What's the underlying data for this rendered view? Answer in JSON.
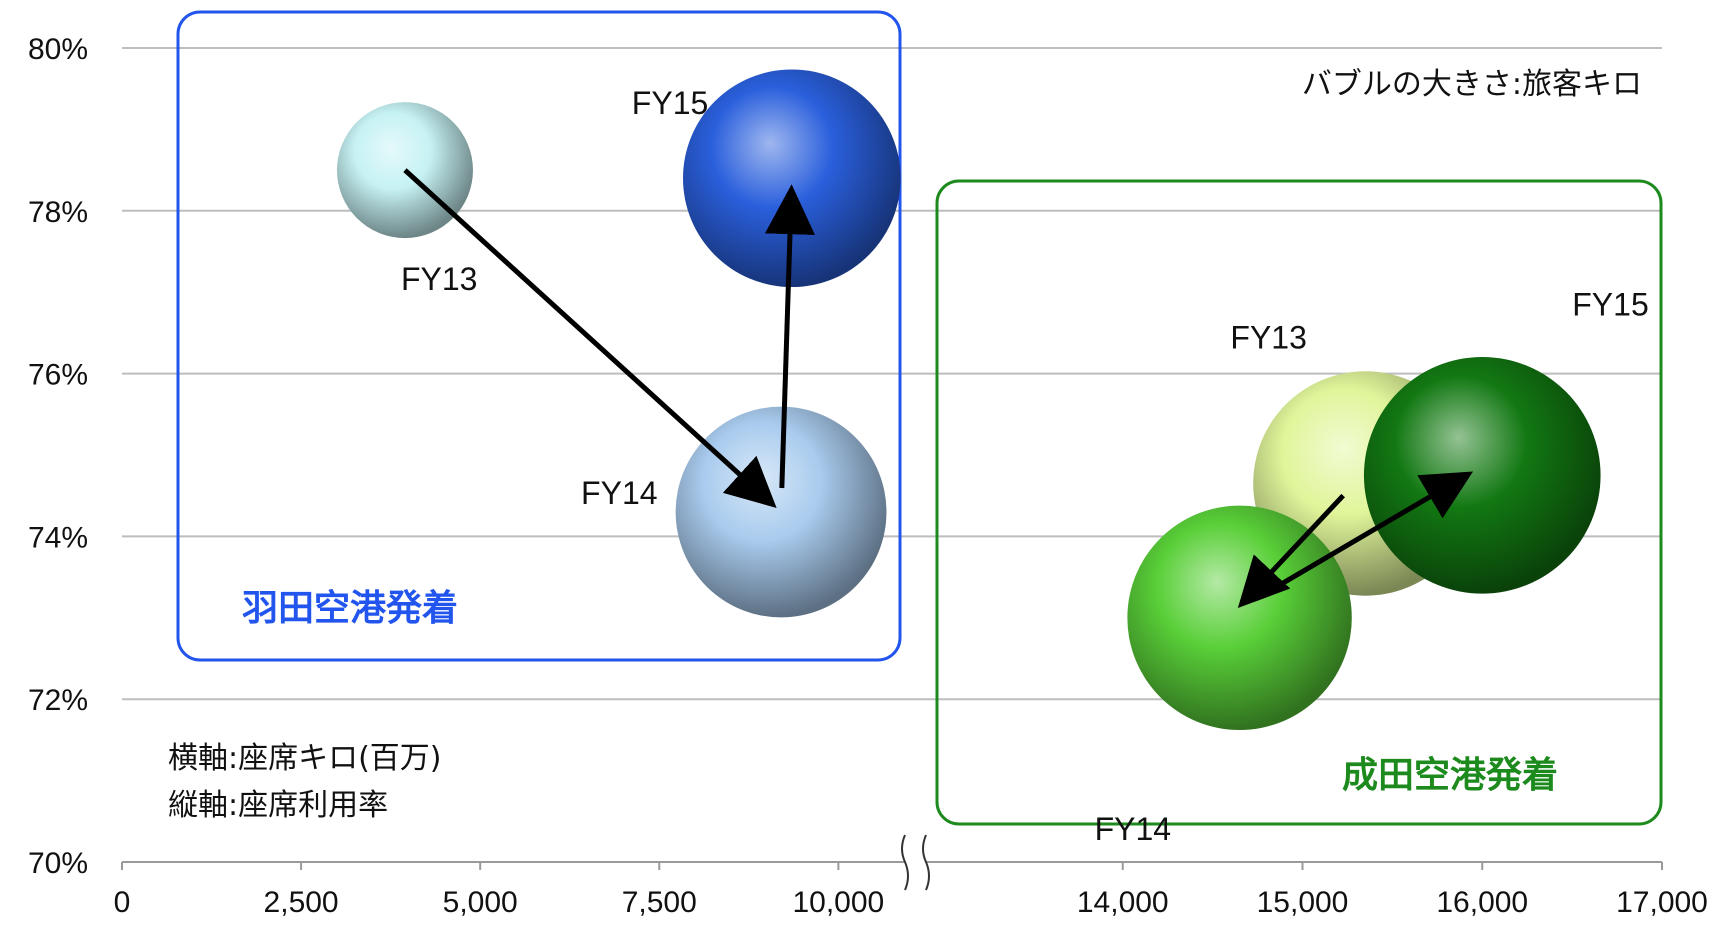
{
  "chart_data": {
    "type": "bubble",
    "y_axis": {
      "range": [
        0.7,
        0.8
      ],
      "ticks": [
        "80%",
        "78%",
        "76%",
        "74%",
        "72%",
        "70%"
      ]
    },
    "x_axis": {
      "broken": true,
      "ticks": [
        "0",
        "2,500",
        "5,000",
        "7,500",
        "10,000",
        "14,000",
        "15,000",
        "16,000",
        "17,000"
      ],
      "segments": [
        {
          "range": [
            0,
            11000
          ]
        },
        {
          "range": [
            13000,
            17000
          ]
        }
      ]
    },
    "grid": "horizontal",
    "notes": {
      "bubble_size": "バブルの大きさ:旅客キロ",
      "x_axis_desc": "横軸:座席キロ(百万)",
      "y_axis_desc": "縦軸:座席利用率"
    },
    "groups": [
      {
        "name": "羽田空港発着",
        "color": "#2255ee",
        "arrow_order": [
          "FY13",
          "FY14",
          "FY15"
        ],
        "points": [
          {
            "label": "FY13",
            "x": 3950,
            "y": 0.785,
            "size": 1.0,
            "color": "#c6f2f4"
          },
          {
            "label": "FY14",
            "x": 9200,
            "y": 0.743,
            "size": 1.55,
            "color": "#a9cbee"
          },
          {
            "label": "FY15",
            "x": 9350,
            "y": 0.784,
            "size": 1.6,
            "color": "#2a5fdc"
          }
        ]
      },
      {
        "name": "成田空港発着",
        "color": "#1d8a1d",
        "arrow_order": [
          "FY13",
          "FY14",
          "FY15"
        ],
        "points": [
          {
            "label": "FY13",
            "x": 15350,
            "y": 0.7465,
            "size": 1.65,
            "color": "#e0f59a"
          },
          {
            "label": "FY14",
            "x": 14650,
            "y": 0.73,
            "size": 1.65,
            "color": "#59cf38"
          },
          {
            "label": "FY15",
            "x": 16000,
            "y": 0.7475,
            "size": 1.74,
            "color": "#127812"
          }
        ]
      }
    ]
  }
}
